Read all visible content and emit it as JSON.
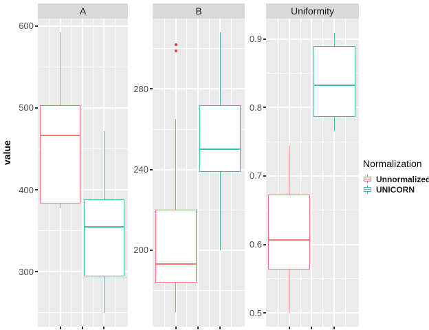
{
  "figure": {
    "y_axis_title": "value",
    "panel_bg": "#ebebeb",
    "strip_bg": "#d9d9d9",
    "grid_color": "#ffffff",
    "tick_label_color": "#4d4d4d",
    "outlier_color": "#e0443e"
  },
  "legend": {
    "title": "Normalization",
    "entries": [
      {
        "label": "Unnormalized",
        "color": "#F8766D"
      },
      {
        "label": "UNICORN",
        "color": "#45BCA9"
      }
    ]
  },
  "chart_data": {
    "type": "boxplot",
    "facets_note": "faceted boxplots, free y scales, two groups per facet",
    "facets": [
      {
        "label": "A",
        "ylim": [
          233,
          609
        ],
        "ticks": [
          300,
          400,
          500,
          600
        ],
        "minor_ticks": [
          250,
          350,
          450,
          550
        ],
        "series": [
          {
            "name": "Unnormalized",
            "color": "#F8766D",
            "low": 377,
            "q1": 383,
            "median": 466,
            "q3": 503,
            "high": 592,
            "outliers": []
          },
          {
            "name": "UNICORN",
            "color": "#45BCA9",
            "low": 250,
            "q1": 294,
            "median": 355,
            "q3": 388,
            "high": 471,
            "outliers": []
          }
        ]
      },
      {
        "label": "B",
        "ylim": [
          162,
          315
        ],
        "ticks": [
          200,
          240,
          280
        ],
        "minor_ticks": [
          180,
          220,
          260,
          300
        ],
        "series": [
          {
            "name": "Unnormalized",
            "color": "#F8766D",
            "low": 169,
            "q1": 184,
            "median": 193,
            "q3": 220,
            "high": 265,
            "outliers": [
              299,
              302
            ]
          },
          {
            "name": "UNICORN",
            "color": "#45BCA9",
            "low": 200,
            "q1": 239,
            "median": 250,
            "q3": 272,
            "high": 308,
            "outliers": []
          }
        ]
      },
      {
        "label": "Uniformity",
        "ylim": [
          0.48,
          0.93
        ],
        "ticks": [
          0.5,
          0.6,
          0.7,
          0.8,
          0.9
        ],
        "minor_ticks": [
          0.55,
          0.65,
          0.75,
          0.85
        ],
        "series": [
          {
            "name": "Unnormalized",
            "color": "#F8766D",
            "low": 0.5,
            "q1": 0.563,
            "median": 0.607,
            "q3": 0.673,
            "high": 0.744,
            "outliers": []
          },
          {
            "name": "UNICORN",
            "color": "#45BCA9",
            "low": 0.766,
            "q1": 0.786,
            "median": 0.833,
            "q3": 0.89,
            "high": 0.909,
            "outliers": []
          }
        ]
      }
    ]
  }
}
